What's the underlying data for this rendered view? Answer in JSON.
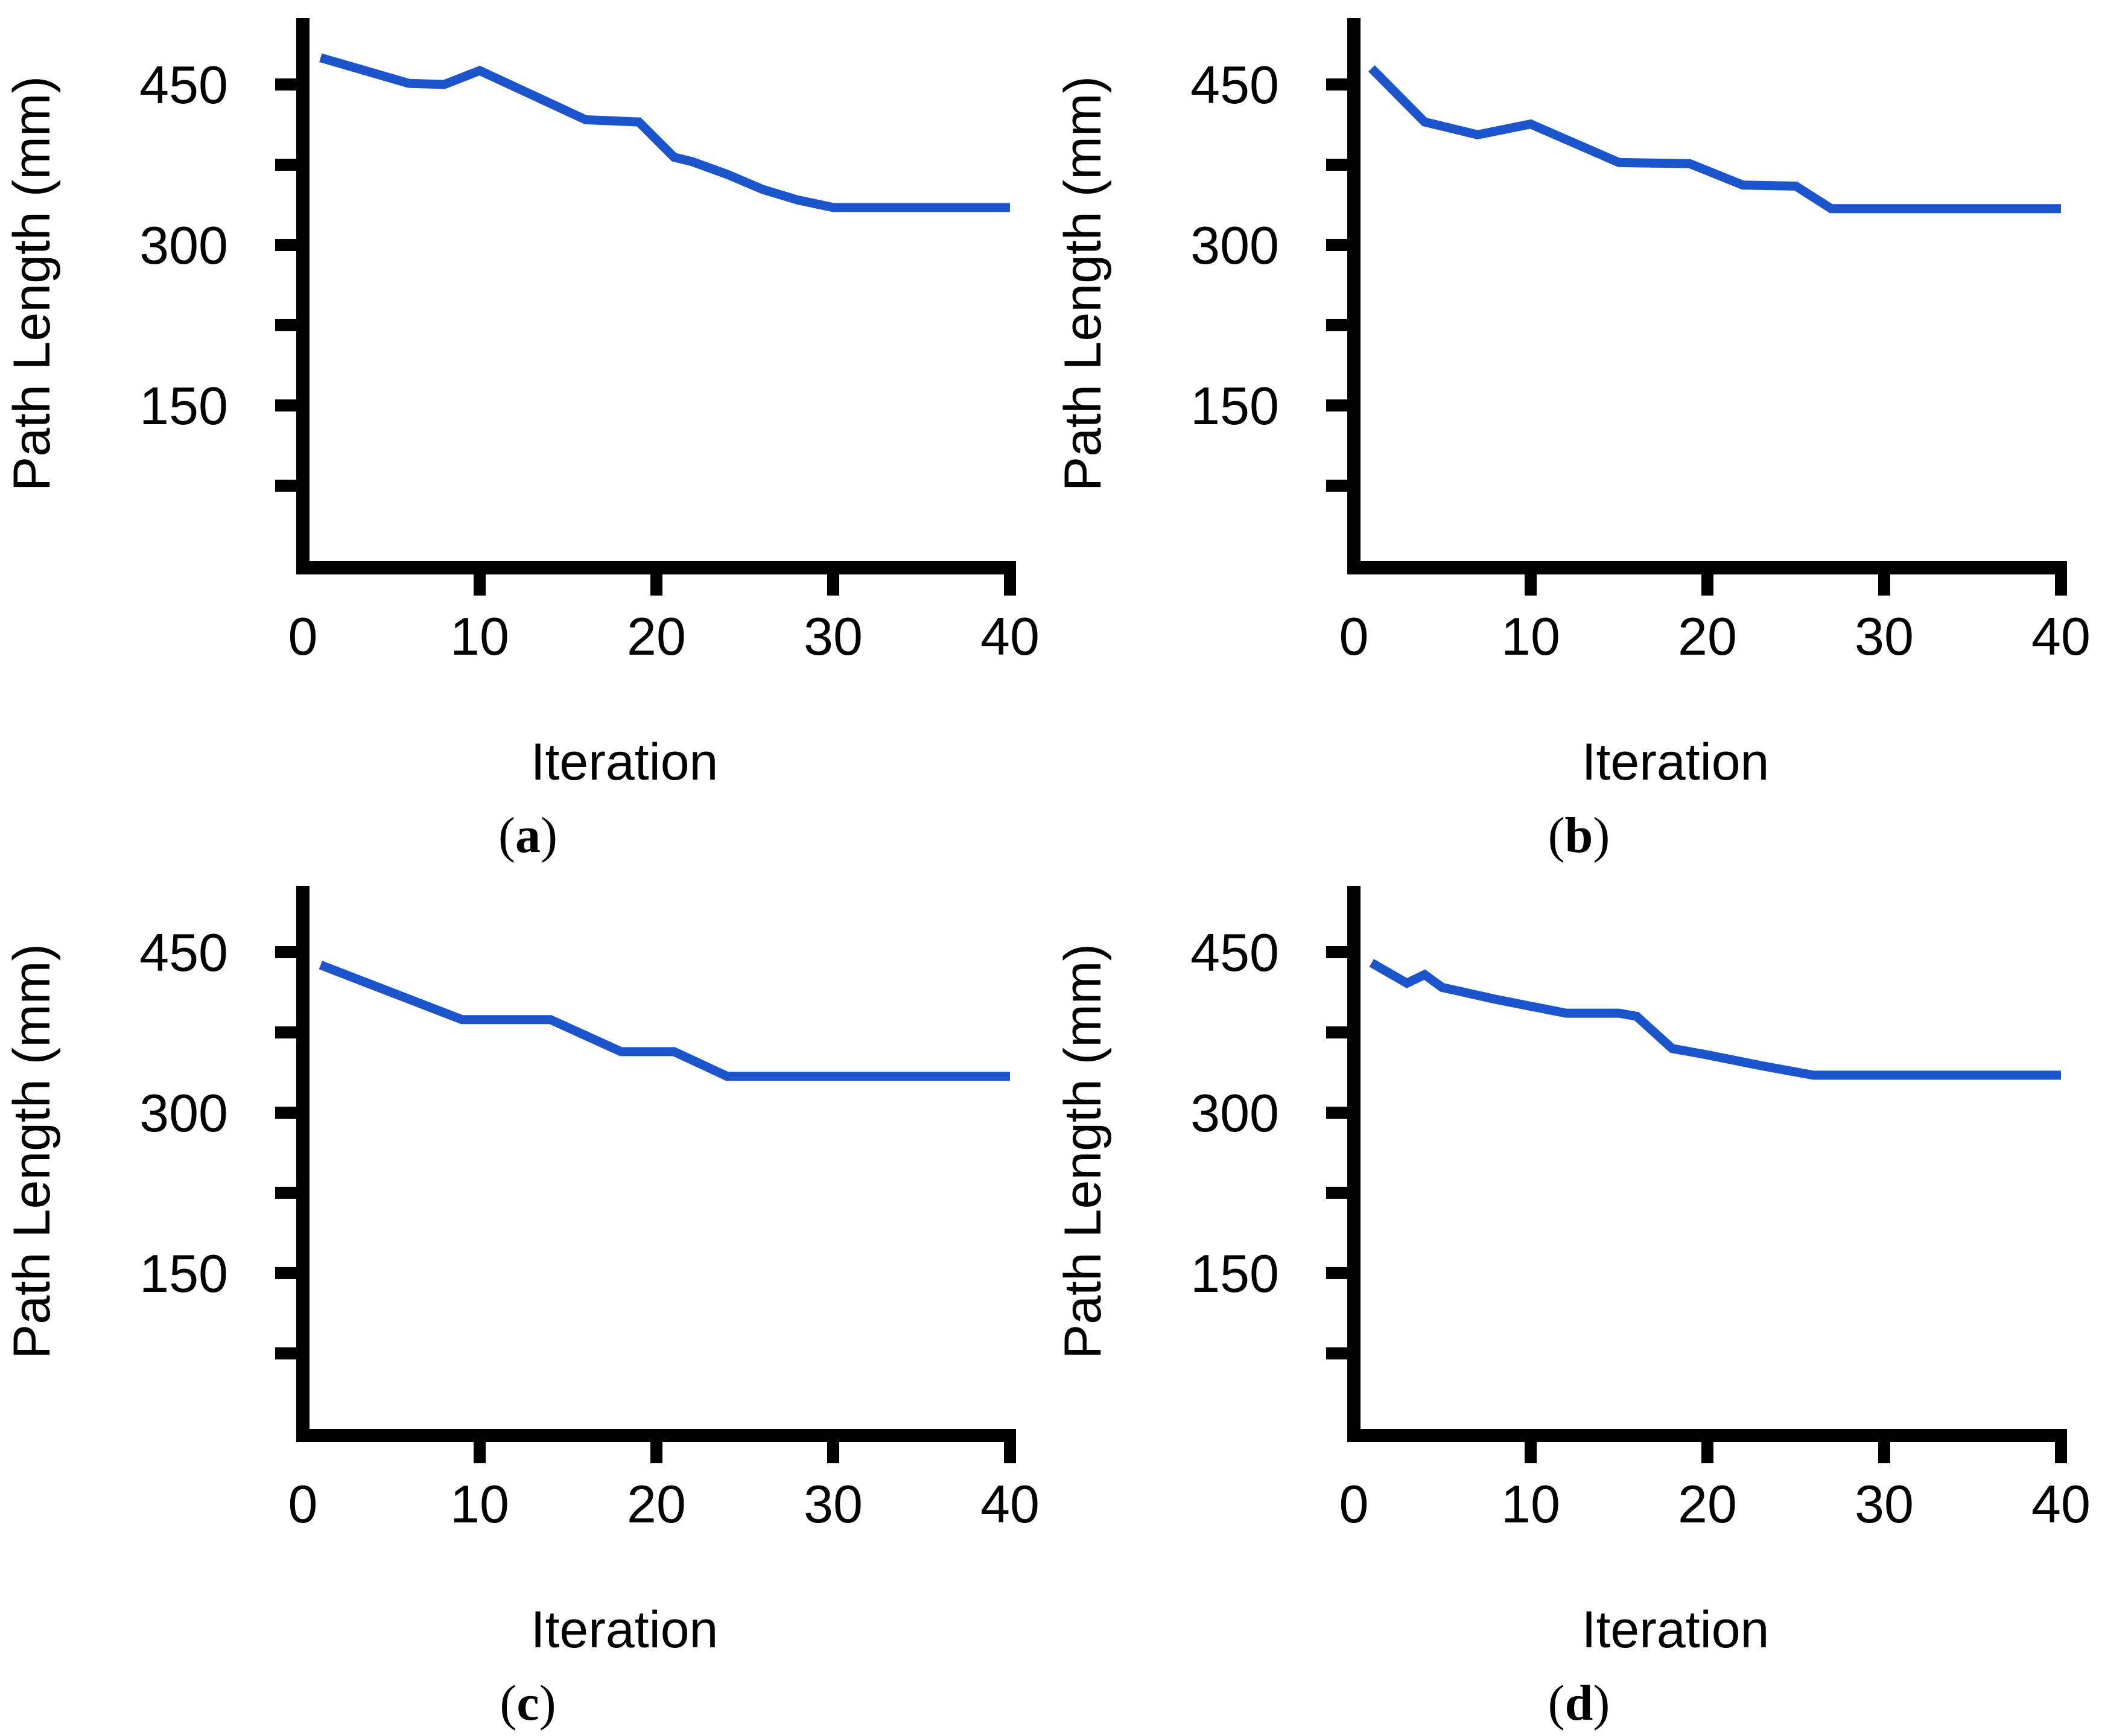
{
  "figure": {
    "y_axis_label": "Path Length (mm)",
    "x_axis_label": "Iteration",
    "line_color": "#1B54CB",
    "axis_color": "#000000",
    "background": "#FFFFFF",
    "layout": "2x2 panel grid",
    "legend": null,
    "grid_lines": false
  },
  "chart_data": [
    {
      "type": "line",
      "caption": "(a)",
      "caption_open": "(",
      "caption_letter": "a",
      "caption_close": ")",
      "xlabel": "Iteration",
      "ylabel": "Path Length (mm)",
      "xlim": [
        0,
        40
      ],
      "ylim": [
        0,
        510
      ],
      "x_ticks": [
        0,
        10,
        20,
        30,
        40
      ],
      "y_ticks": [
        75,
        150,
        225,
        300,
        375,
        450
      ],
      "y_tick_labels": [
        150,
        300,
        450
      ],
      "x": [
        1,
        6,
        8,
        10,
        16,
        19,
        21,
        22,
        24,
        26,
        28,
        30,
        40
      ],
      "y": [
        475,
        451,
        450,
        463,
        417,
        415,
        382,
        378,
        366,
        352,
        342,
        335,
        335
      ]
    },
    {
      "type": "line",
      "caption": "(b)",
      "caption_open": "(",
      "caption_letter": "b",
      "caption_close": ")",
      "xlabel": "Iteration",
      "ylabel": "Path Length (mm)",
      "xlim": [
        0,
        40
      ],
      "ylim": [
        0,
        510
      ],
      "x_ticks": [
        0,
        10,
        20,
        30,
        40
      ],
      "y_ticks": [
        75,
        150,
        225,
        300,
        375,
        450
      ],
      "y_tick_labels": [
        150,
        300,
        450
      ],
      "x": [
        1,
        4,
        7,
        10,
        15,
        19,
        22,
        25,
        27,
        40
      ],
      "y": [
        465,
        415,
        403,
        413,
        377,
        376,
        356,
        355,
        334,
        334
      ]
    },
    {
      "type": "line",
      "caption": "(c)",
      "caption_open": "(",
      "caption_letter": "c",
      "caption_close": ")",
      "xlabel": "Iteration",
      "ylabel": "Path Length (mm)",
      "xlim": [
        0,
        40
      ],
      "ylim": [
        0,
        510
      ],
      "x_ticks": [
        0,
        10,
        20,
        30,
        40
      ],
      "y_ticks": [
        75,
        150,
        225,
        300,
        375,
        450
      ],
      "y_tick_labels": [
        150,
        300,
        450
      ],
      "x": [
        1,
        9,
        14,
        18,
        21,
        24,
        40
      ],
      "y": [
        438,
        387,
        387,
        357,
        357,
        334,
        334
      ]
    },
    {
      "type": "line",
      "caption": "(d)",
      "caption_open": "(",
      "caption_letter": "d",
      "caption_close": ")",
      "xlabel": "Iteration",
      "ylabel": "Path Length (mm)",
      "xlim": [
        0,
        40
      ],
      "ylim": [
        0,
        510
      ],
      "x_ticks": [
        0,
        10,
        20,
        30,
        40
      ],
      "y_ticks": [
        75,
        150,
        225,
        300,
        375,
        450
      ],
      "y_tick_labels": [
        150,
        300,
        450
      ],
      "x": [
        1,
        3,
        4,
        5,
        8,
        12,
        15,
        16,
        18,
        20,
        23,
        26,
        40
      ],
      "y": [
        440,
        421,
        429,
        417,
        406,
        393,
        393,
        390,
        360,
        354,
        344,
        335,
        335
      ]
    }
  ]
}
